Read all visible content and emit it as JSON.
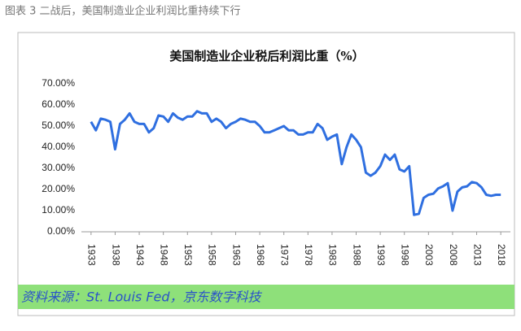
{
  "caption": "图表 3 二战后，美国制造业企业利润比重持续下行",
  "chart_data": {
    "type": "line",
    "title": "美国制造业企业税后利润比重（%）",
    "x": [
      1933,
      1934,
      1935,
      1936,
      1937,
      1938,
      1939,
      1940,
      1941,
      1942,
      1943,
      1944,
      1945,
      1946,
      1947,
      1948,
      1949,
      1950,
      1951,
      1952,
      1953,
      1954,
      1955,
      1956,
      1957,
      1958,
      1959,
      1960,
      1961,
      1962,
      1963,
      1964,
      1965,
      1966,
      1967,
      1968,
      1969,
      1970,
      1971,
      1972,
      1973,
      1974,
      1975,
      1976,
      1977,
      1978,
      1979,
      1980,
      1981,
      1982,
      1983,
      1984,
      1985,
      1986,
      1987,
      1988,
      1989,
      1990,
      1991,
      1992,
      1993,
      1994,
      1995,
      1996,
      1997,
      1998,
      1999,
      2000,
      2001,
      2002,
      2003,
      2004,
      2005,
      2006,
      2007,
      2008,
      2009,
      2010,
      2011,
      2012,
      2013,
      2014,
      2015,
      2016,
      2017,
      2018
    ],
    "values": [
      52,
      48,
      53.5,
      53,
      52,
      39,
      51,
      53,
      56,
      52,
      51,
      51,
      47,
      49,
      55,
      54.5,
      52,
      56,
      54,
      53,
      54.5,
      54.5,
      57,
      56,
      56,
      52,
      53.5,
      52,
      49,
      51,
      52,
      53.5,
      53,
      52,
      52,
      50,
      47,
      47,
      48,
      49,
      50,
      48,
      48,
      46,
      46,
      47,
      47,
      51,
      49,
      43.5,
      45,
      46,
      32,
      40,
      46,
      43.5,
      40,
      28,
      26.5,
      28,
      31,
      36.5,
      34,
      36.5,
      29.5,
      28.5,
      31,
      8,
      8.5,
      16,
      17.5,
      18,
      20.5,
      21.5,
      23,
      10,
      19,
      21,
      21.5,
      23.5,
      23,
      21,
      17.5,
      17,
      17.5,
      17.5
    ],
    "color": "#2f6fe0",
    "xlim": [
      1931,
      2020
    ],
    "xticks": [
      1933,
      1938,
      1943,
      1948,
      1953,
      1958,
      1963,
      1968,
      1973,
      1978,
      1983,
      1988,
      1993,
      1998,
      2003,
      2008,
      2013,
      2018
    ],
    "ylim": [
      0,
      70
    ],
    "yticks": [
      {
        "value": 0,
        "label": "0.00%"
      },
      {
        "value": 10,
        "label": "10.00%"
      },
      {
        "value": 20,
        "label": "20.00%"
      },
      {
        "value": 30,
        "label": "30.00%"
      },
      {
        "value": 40,
        "label": "40.00%"
      },
      {
        "value": 50,
        "label": "50.00%"
      },
      {
        "value": 60,
        "label": "60.00%"
      },
      {
        "value": 70,
        "label": "70.00%"
      }
    ],
    "grid": false
  },
  "source": "资料来源：St. Louis Fed，京东数字科技"
}
